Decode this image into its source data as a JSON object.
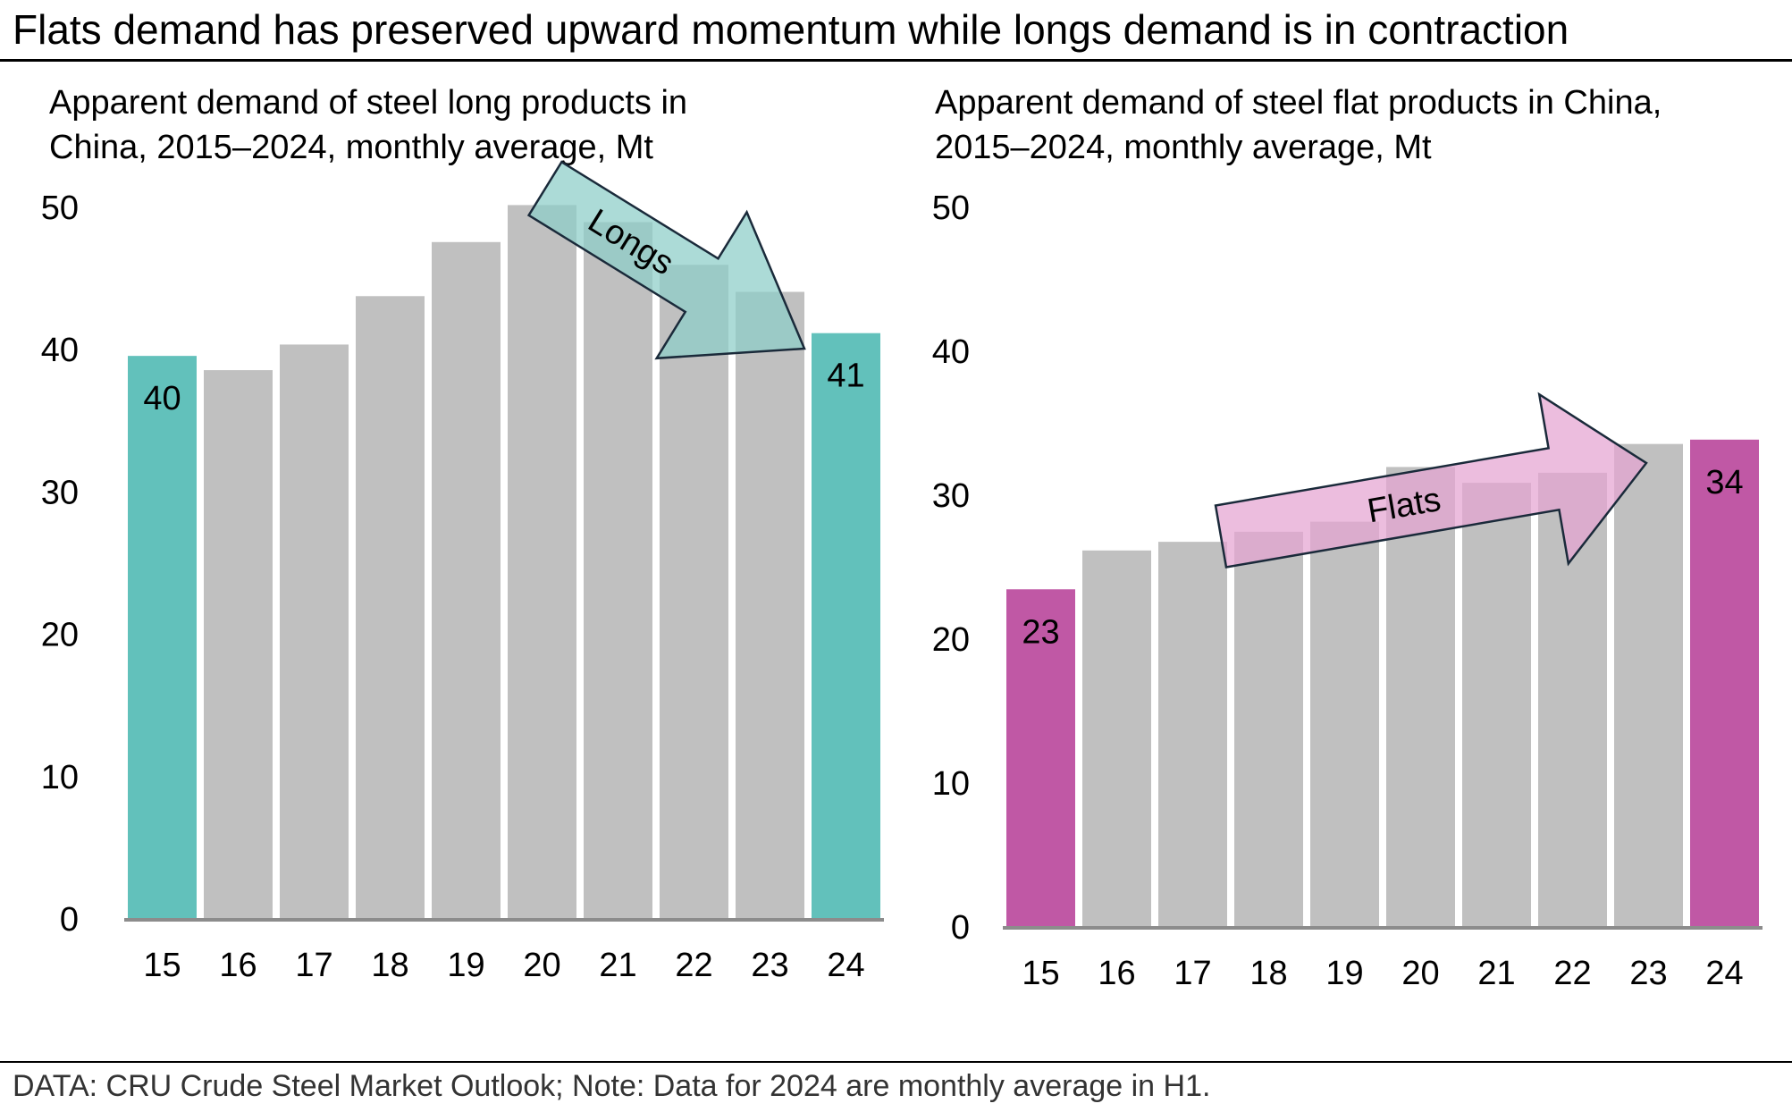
{
  "header": {
    "title": "Flats demand has preserved upward momentum while longs demand is in contraction"
  },
  "footer": {
    "note": "DATA: CRU Crude Steel Market Outlook; Note: Data for 2024 are monthly average in H1."
  },
  "colors": {
    "grey_bar": "#c0c0c0",
    "teal": "#62c1bb",
    "magenta": "#c058a5",
    "teal_arrow_fill": "#8ccdc7",
    "magenta_arrow_fill": "#e4a3d1",
    "axis": "#8c8c8c"
  },
  "chart_data": [
    {
      "type": "bar",
      "title_lines": [
        "Apparent demand of steel long products in",
        "China, 2015–2024, monthly average, Mt"
      ],
      "categories": [
        "15",
        "16",
        "17",
        "18",
        "19",
        "20",
        "21",
        "22",
        "23",
        "24"
      ],
      "values": [
        39.5,
        38.5,
        40.3,
        43.7,
        47.5,
        50.1,
        48.9,
        45.9,
        44.0,
        41.1
      ],
      "highlight_indices": [
        0,
        9
      ],
      "data_labels": [
        {
          "index": 0,
          "text": "40"
        },
        {
          "index": 9,
          "text": "41"
        }
      ],
      "ylim": [
        0,
        50
      ],
      "yticks": [
        "0",
        "10",
        "20",
        "30",
        "40",
        "50"
      ],
      "annotation": {
        "text": "Longs",
        "direction": "down"
      },
      "highlight_color_key": "teal"
    },
    {
      "type": "bar",
      "title_lines": [
        "Apparent demand of steel flat products in China,",
        "2015–2024, monthly average, Mt"
      ],
      "categories": [
        "15",
        "16",
        "17",
        "18",
        "19",
        "20",
        "21",
        "22",
        "23",
        "24"
      ],
      "values": [
        23.4,
        26.1,
        26.7,
        27.4,
        28.1,
        31.9,
        30.8,
        31.5,
        33.5,
        33.8
      ],
      "highlight_indices": [
        0,
        9
      ],
      "data_labels": [
        {
          "index": 0,
          "text": "23"
        },
        {
          "index": 9,
          "text": "34"
        }
      ],
      "ylim": [
        0,
        50
      ],
      "yticks": [
        "0",
        "10",
        "20",
        "30",
        "40",
        "50"
      ],
      "annotation": {
        "text": "Flats",
        "direction": "up"
      },
      "highlight_color_key": "magenta"
    }
  ]
}
